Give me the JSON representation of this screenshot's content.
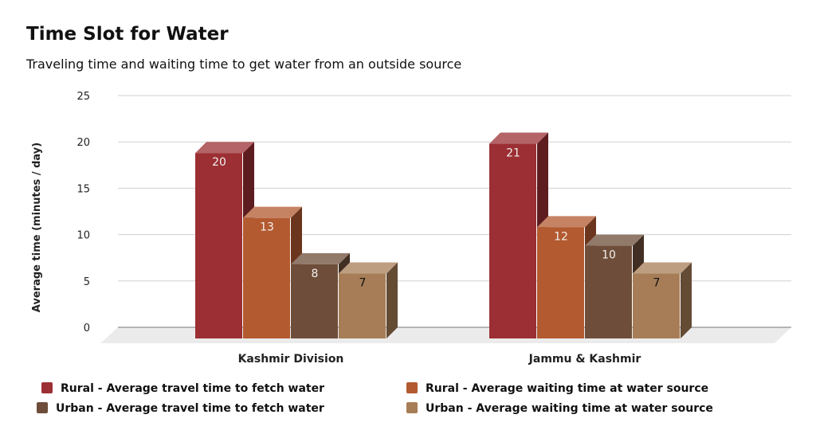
{
  "chart_data": {
    "type": "bar",
    "title": "Time Slot for Water",
    "subtitle": "Traveling time and waiting time to get water from an outside source",
    "xlabel": "",
    "ylabel": "Average time (minutes / day)",
    "ylim": [
      0,
      25
    ],
    "yticks": [
      0,
      5,
      10,
      15,
      20,
      25
    ],
    "grid": true,
    "legend_position": "bottom",
    "categories": [
      "Kashmir Division",
      "Jammu & Kashmir"
    ],
    "series": [
      {
        "name": "Rural - Average travel time to fetch water",
        "values": [
          20,
          21
        ],
        "color": "#9b2f33"
      },
      {
        "name": "Rural - Average waiting time at water source",
        "values": [
          13,
          12
        ],
        "color": "#b35a30"
      },
      {
        "name": "Urban - Average travel time to fetch water",
        "values": [
          8,
          10
        ],
        "color": "#6e4e3a"
      },
      {
        "name": "Urban - Average waiting time at water source",
        "values": [
          7,
          7
        ],
        "color": "#a77d57"
      }
    ]
  }
}
